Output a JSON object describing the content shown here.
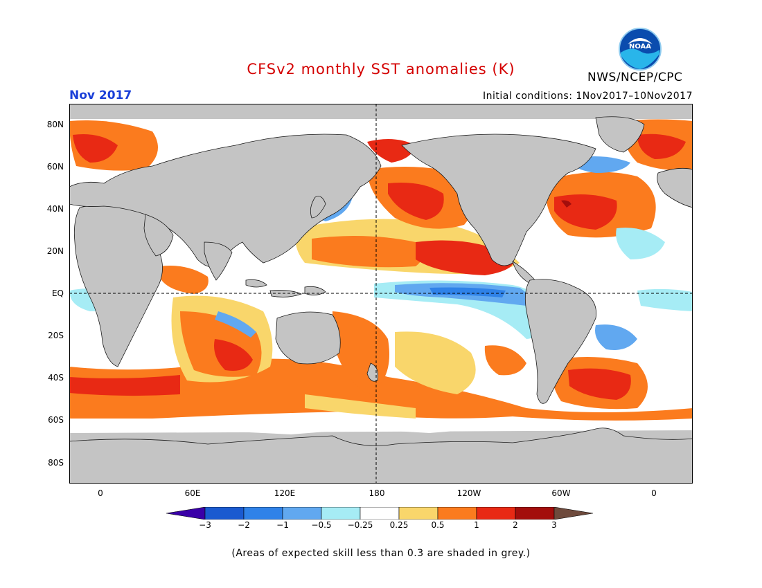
{
  "title": "CFSv2 monthly SST anomalies (K)",
  "organization": "NWS/NCEP/CPC",
  "logo_text": "NOAA",
  "target_month": "Nov 2017",
  "initial_conditions": "Initial conditions: 1Nov2017–10Nov2017",
  "footnote": "(Areas of expected skill less than 0.3 are shaded in grey.)",
  "lat_labels": [
    "80N",
    "60N",
    "40N",
    "20N",
    "EQ",
    "20S",
    "40S",
    "60S",
    "80S"
  ],
  "lon_labels": [
    "0",
    "60E",
    "120E",
    "180",
    "120W",
    "60W",
    "0"
  ],
  "colorbar": {
    "tick_labels": [
      "−3",
      "−2",
      "−1",
      "−0.5",
      "−0.25",
      "0.25",
      "0.5",
      "1",
      "2",
      "3"
    ],
    "colors": [
      "#3a00a8",
      "#1a5ad0",
      "#2f82e8",
      "#61a8f0",
      "#a6ecf5",
      "#ffffff",
      "#f9d66b",
      "#fb7b1e",
      "#e82914",
      "#a30e0c",
      "#6e4a3c"
    ]
  },
  "colors": {
    "land": "#c4c4c4",
    "low_skill": "#c4c4c4",
    "title_red": "#d40000",
    "month_blue": "#1a3fd8"
  }
}
